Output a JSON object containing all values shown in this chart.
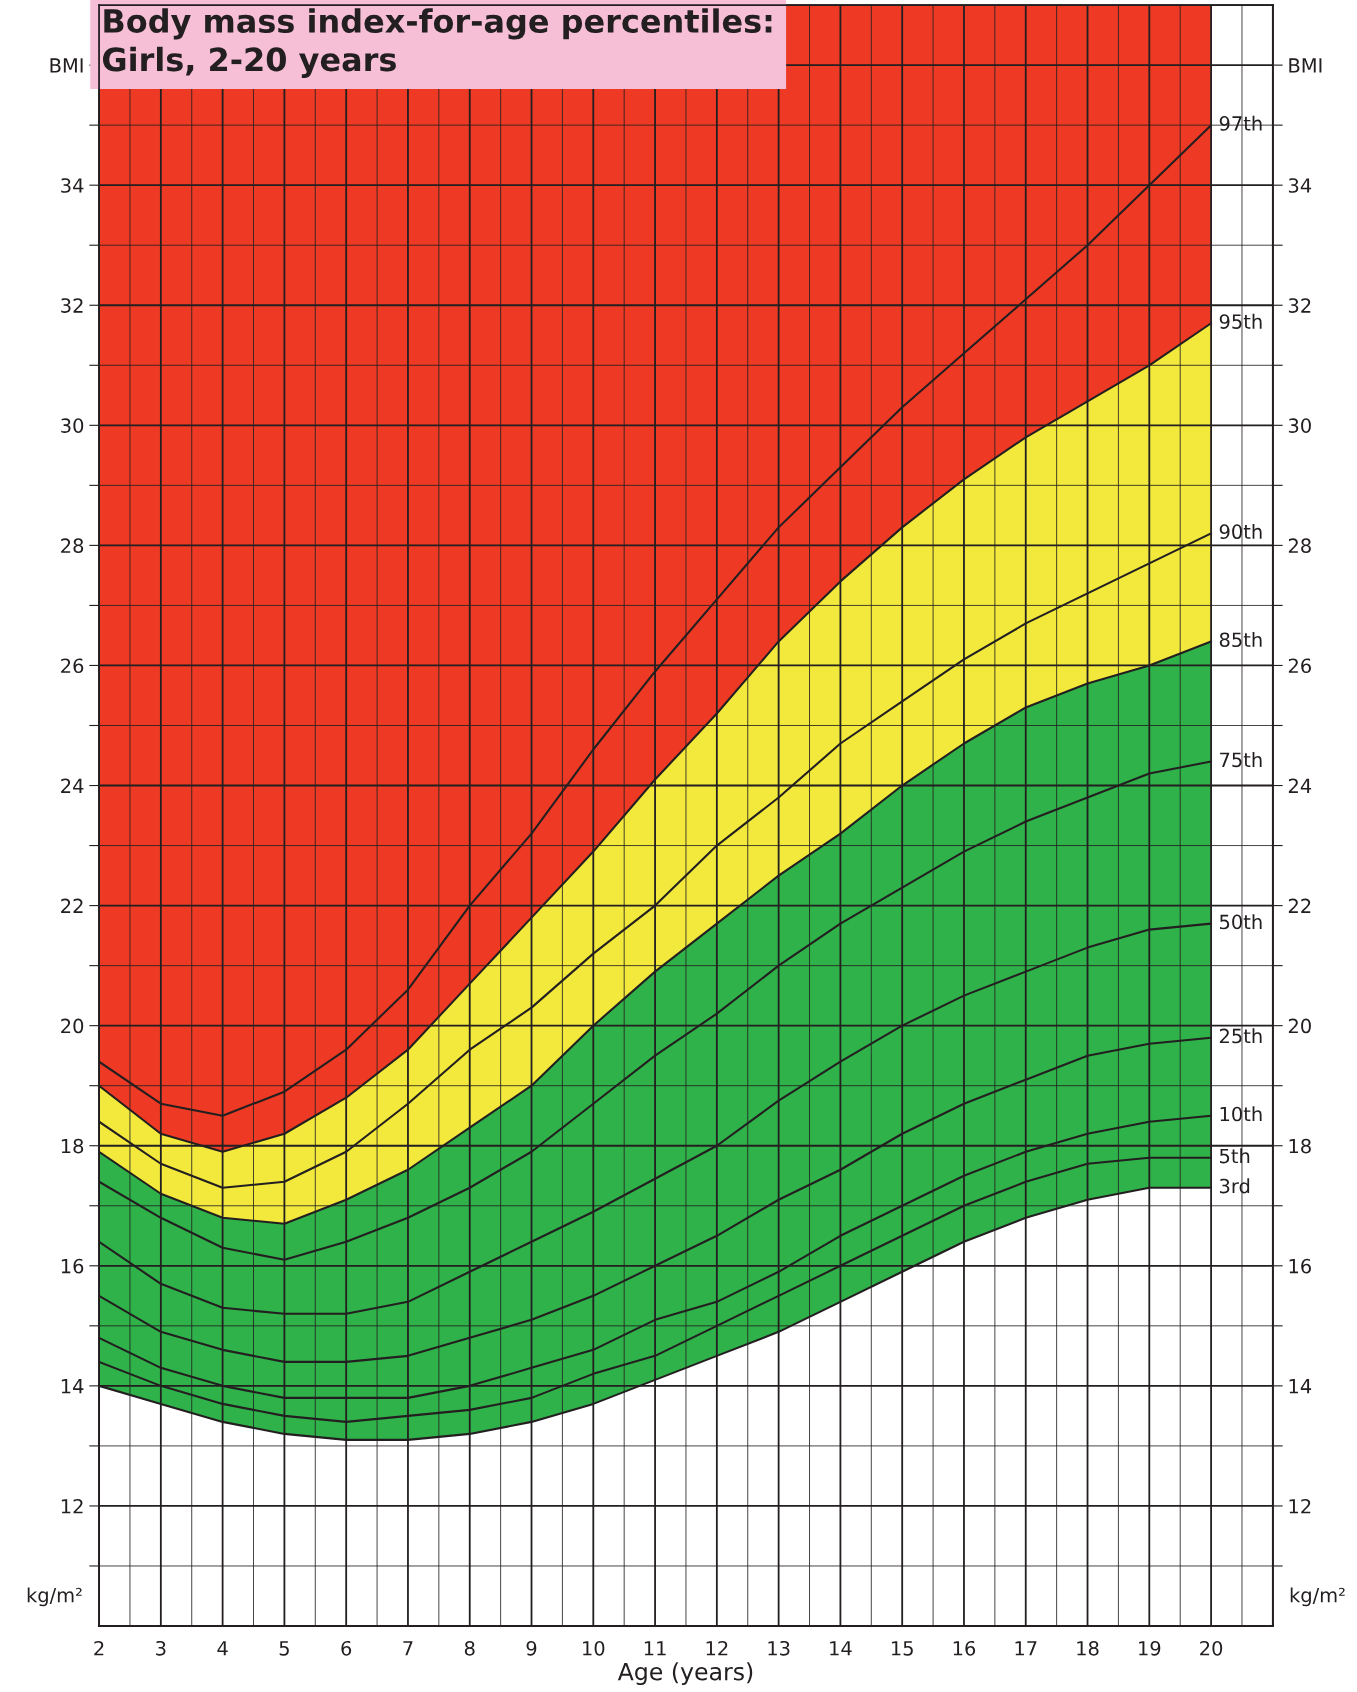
{
  "chart_data": {
    "type": "line",
    "title": "Body mass index-for-age percentiles:\nGirls, 2-20 years",
    "xlabel": "Age (years)",
    "ylabel": "kg/m²",
    "y2label": "kg/m²",
    "x": [
      2,
      3,
      4,
      5,
      6,
      7,
      8,
      9,
      10,
      11,
      12,
      13,
      14,
      15,
      16,
      17,
      18,
      19,
      20
    ],
    "xlim": [
      2,
      21
    ],
    "xticks": [
      2,
      {
        "value": 2.5,
        "label": null
      },
      3,
      {
        "value": 3.5,
        "label": null
      },
      4,
      {
        "value": 4.5,
        "label": null
      },
      5,
      {
        "value": 5.5,
        "label": null
      },
      6,
      {
        "value": 6.5,
        "label": null
      },
      7,
      {
        "value": 7.5,
        "label": null
      },
      8,
      {
        "value": 8.5,
        "label": null
      },
      9,
      {
        "value": 9.5,
        "label": null
      },
      10,
      {
        "value": 10.5,
        "label": null
      },
      11,
      {
        "value": 11.5,
        "label": null
      },
      12,
      {
        "value": 12.5,
        "label": null
      },
      13,
      {
        "value": 13.5,
        "label": null
      },
      14,
      {
        "value": 14.5,
        "label": null
      },
      15,
      {
        "value": 15.5,
        "label": null
      },
      16,
      {
        "value": 16.5,
        "label": null
      },
      17,
      {
        "value": 17.5,
        "label": null
      },
      18,
      {
        "value": 18.5,
        "label": null
      },
      19,
      {
        "value": 19.5,
        "label": null
      },
      20,
      {
        "value": 20.5,
        "label": null
      }
    ],
    "ylim": [
      10,
      37
    ],
    "yticks": [
      {
        "value": 11,
        "label": null
      },
      12,
      {
        "value": 13,
        "label": null
      },
      14,
      {
        "value": 15,
        "label": null
      },
      16,
      {
        "value": 17,
        "label": null
      },
      18,
      {
        "value": 19,
        "label": null
      },
      20,
      {
        "value": 21,
        "label": null
      },
      22,
      {
        "value": 23,
        "label": null
      },
      24,
      {
        "value": 25,
        "label": null
      },
      26,
      {
        "value": 27,
        "label": null
      },
      28,
      {
        "value": 29,
        "label": null
      },
      30,
      {
        "value": 31,
        "label": null
      },
      32,
      {
        "value": 33,
        "label": null
      },
      34,
      {
        "value": 35,
        "label": null
      },
      {
        "value": 36,
        "label": "BMI"
      }
    ],
    "y2lim": [
      10,
      37
    ],
    "y2ticks": [
      {
        "value": 11,
        "label": null
      },
      12,
      {
        "value": 13,
        "label": null
      },
      14,
      {
        "value": 15,
        "label": null
      },
      16,
      {
        "value": 17,
        "label": null
      },
      18,
      {
        "value": 19,
        "label": null
      },
      20,
      {
        "value": 21,
        "label": null
      },
      22,
      {
        "value": 23,
        "label": null
      },
      24,
      {
        "value": 25,
        "label": null
      },
      26,
      {
        "value": 27,
        "label": null
      },
      28,
      {
        "value": 29,
        "label": null
      },
      30,
      {
        "value": 31,
        "label": null
      },
      32,
      {
        "value": 33,
        "label": null
      },
      34,
      {
        "value": 35,
        "label": null
      },
      {
        "value": 36,
        "label": "BMI"
      }
    ],
    "grid": true,
    "legend": false,
    "line_style": "solid",
    "bands": [
      {
        "axis": "x",
        "from": 2,
        "to": 20,
        "color": "#ee3a24"
      }
    ],
    "series": [
      {
        "name": "97th",
        "color": "#231f20",
        "values": [
          19.4,
          18.7,
          18.5,
          18.9,
          19.6,
          20.6,
          22.0,
          23.2,
          24.6,
          25.9,
          27.1,
          28.3,
          29.3,
          30.3,
          31.2,
          32.1,
          33.0,
          34.0,
          35.0
        ]
      },
      {
        "name": "95th",
        "type": "area",
        "color": "#f2e93c",
        "values": [
          19.0,
          18.2,
          17.9,
          18.2,
          18.8,
          19.6,
          20.7,
          21.8,
          22.9,
          24.1,
          25.2,
          26.4,
          27.4,
          28.3,
          29.1,
          29.8,
          30.4,
          31.0,
          31.7
        ]
      },
      {
        "name": "90th",
        "color": "#231f20",
        "values": [
          18.4,
          17.7,
          17.3,
          17.4,
          17.9,
          18.7,
          19.6,
          20.3,
          21.2,
          22.0,
          23.0,
          23.8,
          24.7,
          25.4,
          26.1,
          26.7,
          27.2,
          27.7,
          28.2
        ]
      },
      {
        "name": "85th",
        "type": "area",
        "color": "#2fb24a",
        "values": [
          17.9,
          17.2,
          16.8,
          16.7,
          17.1,
          17.6,
          18.3,
          19.0,
          20.0,
          20.9,
          21.7,
          22.5,
          23.2,
          24.0,
          24.7,
          25.3,
          25.7,
          26.0,
          26.4
        ]
      },
      {
        "name": "75th",
        "color": "#231f20",
        "values": [
          17.4,
          16.8,
          16.3,
          16.1,
          16.4,
          16.8,
          17.3,
          17.9,
          18.7,
          19.5,
          20.2,
          21.0,
          21.7,
          22.3,
          22.9,
          23.4,
          23.8,
          24.2,
          24.4
        ]
      },
      {
        "name": "50th",
        "color": "#231f20",
        "values": [
          16.4,
          15.7,
          15.3,
          15.2,
          15.2,
          15.4,
          15.9,
          16.4,
          16.9,
          17.45,
          18.0,
          18.75,
          19.4,
          20.0,
          20.5,
          20.9,
          21.3,
          21.6,
          21.7
        ]
      },
      {
        "name": "25th",
        "color": "#231f20",
        "values": [
          15.5,
          14.9,
          14.6,
          14.4,
          14.4,
          14.5,
          14.8,
          15.1,
          15.5,
          16.0,
          16.5,
          17.1,
          17.6,
          18.2,
          18.7,
          19.1,
          19.5,
          19.7,
          19.8
        ]
      },
      {
        "name": "10th",
        "color": "#231f20",
        "values": [
          14.8,
          14.3,
          14.0,
          13.8,
          13.8,
          13.8,
          14.0,
          14.3,
          14.6,
          15.1,
          15.4,
          15.9,
          16.5,
          17.0,
          17.5,
          17.9,
          18.2,
          18.4,
          18.5
        ]
      },
      {
        "name": "5th",
        "color": "#231f20",
        "values": [
          14.4,
          14.0,
          13.7,
          13.5,
          13.4,
          13.5,
          13.6,
          13.8,
          14.2,
          14.5,
          15.0,
          15.5,
          16.0,
          16.5,
          17.0,
          17.4,
          17.7,
          17.8,
          17.8
        ]
      },
      {
        "name": "3rd",
        "type": "area",
        "color": "#ffffff",
        "values": [
          14.0,
          13.7,
          13.4,
          13.2,
          13.1,
          13.1,
          13.2,
          13.4,
          13.7,
          14.1,
          14.5,
          14.9,
          15.4,
          15.9,
          16.4,
          16.8,
          17.1,
          17.3,
          17.3
        ]
      }
    ]
  }
}
